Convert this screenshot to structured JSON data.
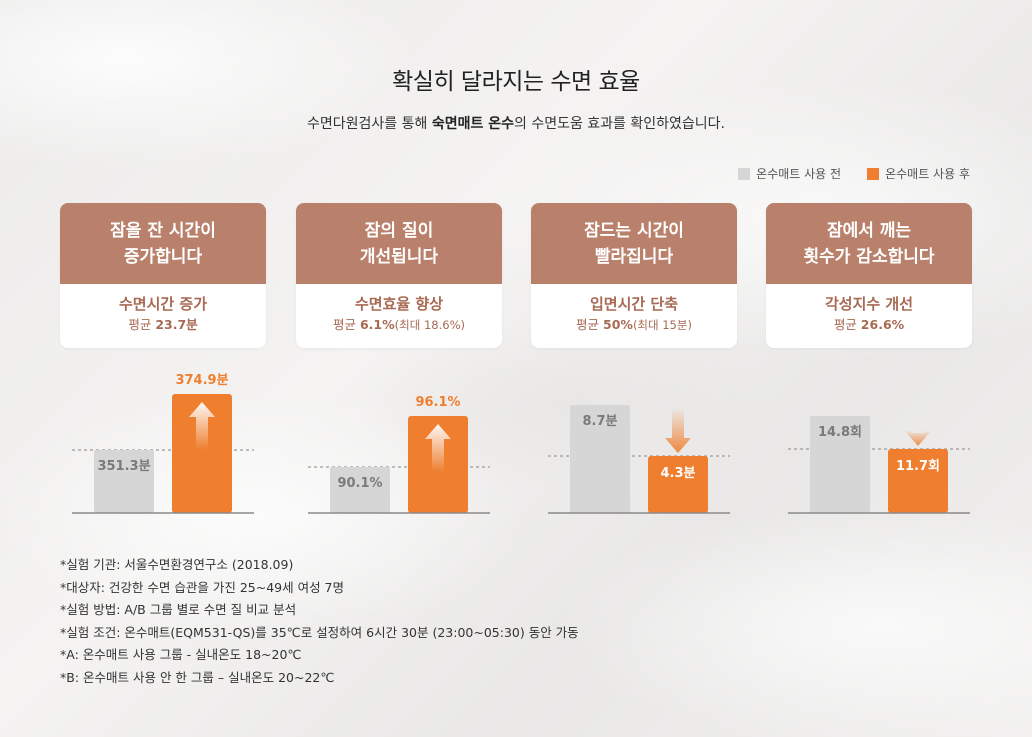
{
  "header": {
    "title": "확실히 달라지는 수면 효율",
    "subtitle_pre": "수면다원검사를 통해 ",
    "subtitle_bold": "숙면매트 온수",
    "subtitle_post": "의 수면도움 효과를 확인하였습니다."
  },
  "legend": [
    {
      "label": "온수매트 사용 전",
      "color": "#d6d6d6"
    },
    {
      "label": "온수매트 사용 후",
      "color": "#ef7e2e"
    }
  ],
  "cards": [
    {
      "head1": "잠을 잔 시간이",
      "head2": "증가합니다",
      "metric": "수면시간 증가",
      "detail_pre": "평균 ",
      "detail_val": "23.7분",
      "detail_note": ""
    },
    {
      "head1": "잠의 질이",
      "head2": "개선됩니다",
      "metric": "수면효율 향상",
      "detail_pre": "평균 ",
      "detail_val": "6.1%",
      "detail_note": "(최대 18.6%)"
    },
    {
      "head1": "잠드는 시간이",
      "head2": "빨라집니다",
      "metric": "입면시간 단축",
      "detail_pre": "평균 ",
      "detail_val": "50%",
      "detail_note": "(최대 15분)"
    },
    {
      "head1": "잠에서 깨는",
      "head2": "횟수가 감소합니다",
      "metric": "각성지수 개선",
      "detail_pre": "평균 ",
      "detail_val": "26.6%",
      "detail_note": ""
    }
  ],
  "chart_data": [
    {
      "type": "bar",
      "categories": [
        "온수매트 사용 전",
        "온수매트 사용 후"
      ],
      "values": [
        351.3,
        374.9
      ],
      "labels": [
        "351.3분",
        "374.9분"
      ],
      "direction": "up"
    },
    {
      "type": "bar",
      "categories": [
        "온수매트 사용 전",
        "온수매트 사용 후"
      ],
      "values": [
        90.1,
        96.1
      ],
      "labels": [
        "90.1%",
        "96.1%"
      ],
      "direction": "up"
    },
    {
      "type": "bar",
      "categories": [
        "온수매트 사용 전",
        "온수매트 사용 후"
      ],
      "values": [
        8.7,
        4.3
      ],
      "labels": [
        "8.7분",
        "4.3분"
      ],
      "direction": "down"
    },
    {
      "type": "bar",
      "categories": [
        "온수매트 사용 전",
        "온수매트 사용 후"
      ],
      "values": [
        14.8,
        11.7
      ],
      "labels": [
        "14.8회",
        "11.7회"
      ],
      "direction": "down"
    }
  ],
  "footnotes": [
    "*실험 기관: 서울수면환경연구소 (2018.09)",
    "*대상자: 건강한 수면 습관을 가진 25~49세 여성 7명",
    "*실험 방법: A/B 그룹 별로 수면 질 비교 분석",
    "*실험 조건: 온수매트(EQM531-QS)를 35℃로 설정하여 6시간 30분 (23:00~05:30) 동안 가동",
    "*A: 온수매트 사용 그룹 - 실내온도 18~20℃",
    "*B: 온수매트 사용 안 한 그룹 – 실내온도 20~22℃"
  ]
}
